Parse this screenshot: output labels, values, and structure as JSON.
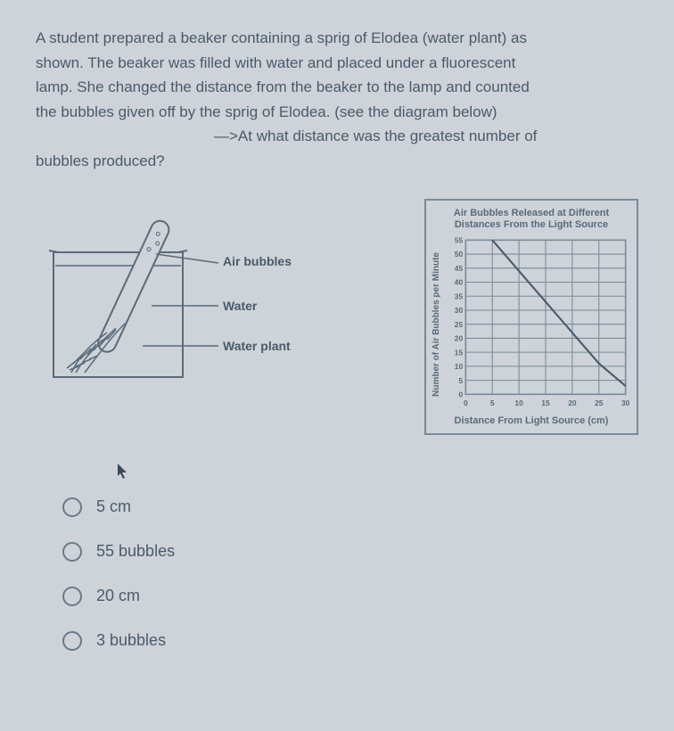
{
  "question": {
    "lines": [
      "A student prepared a beaker containing a sprig of Elodea (water plant) as",
      "shown. The beaker was filled with water and placed under a fluorescent",
      "lamp. She changed the distance from the beaker to the lamp and counted",
      "the bubbles given off by the sprig of Elodea. (see the diagram below)",
      "—>At what distance was the greatest number of",
      "bubbles produced?"
    ]
  },
  "beaker": {
    "labels": {
      "air_bubbles": "Air bubbles",
      "water": "Water",
      "water_plant": "Water plant"
    },
    "colors": {
      "stroke": "#5a6a7a",
      "fill_light": "#cdd3d8"
    }
  },
  "chart": {
    "title": "Air Bubbles Released at Different Distances From the Light Source",
    "ylabel": "Number of Air Bubbles per Minute",
    "xlabel": "Distance From Light Source (cm)",
    "xlim": [
      0,
      30
    ],
    "ylim": [
      0,
      55
    ],
    "xtick_step": 5,
    "ytick_step": 5,
    "xticks": [
      0,
      5,
      10,
      15,
      20,
      25,
      30
    ],
    "yticks": [
      0,
      5,
      10,
      15,
      20,
      25,
      30,
      35,
      40,
      45,
      50,
      55
    ],
    "series": {
      "type": "line",
      "x": [
        5,
        10,
        15,
        20,
        25,
        30
      ],
      "y": [
        55,
        44,
        33,
        22,
        11,
        3
      ],
      "line_color": "#4a5a6a",
      "line_width": 2,
      "marker": "none"
    },
    "grid_color": "#7a8a9a",
    "background_color": "#cdd3d8",
    "text_color": "#5a6a7a",
    "title_fontsize": 11,
    "label_fontsize": 10
  },
  "options": [
    {
      "label": "5 cm"
    },
    {
      "label": "55 bubbles"
    },
    {
      "label": "20 cm"
    },
    {
      "label": "3 bubbles"
    }
  ]
}
